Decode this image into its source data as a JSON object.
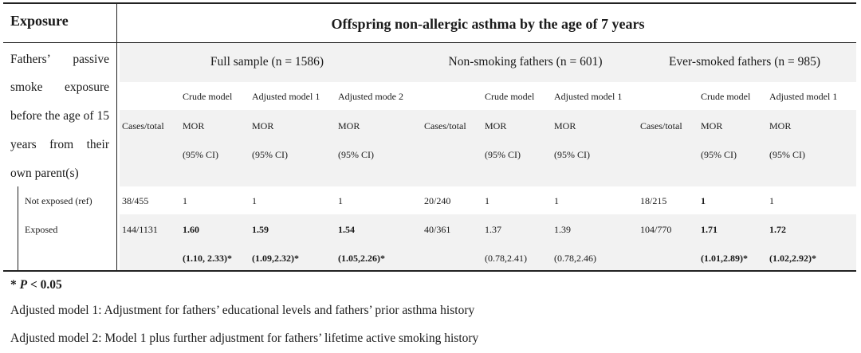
{
  "table": {
    "exposure_header": "Exposure",
    "outcome_header": "Offspring non-allergic asthma by the age of 7 years",
    "exposure_desc": [
      [
        "Fathers’",
        "passive"
      ],
      [
        "smoke",
        "exposure"
      ],
      [
        "before the age of 15"
      ],
      [
        "years",
        "from",
        "their"
      ],
      [
        "own parent(s)"
      ]
    ],
    "groups": [
      {
        "label": "Full sample (n = 1586)",
        "models": [
          "Crude model",
          "Adjusted model 1",
          "Adjusted mode 2"
        ]
      },
      {
        "label": "Non-smoking fathers (n = 601)",
        "models": [
          "Crude model",
          "Adjusted model 1"
        ]
      },
      {
        "label": "Ever-smoked fathers (n = 985)",
        "models": [
          "Crude model",
          "Adjusted model 1"
        ]
      }
    ],
    "cases_label": "Cases/total",
    "mor_label": "MOR",
    "ci_label": "(95% CI)",
    "rows": [
      {
        "label": "Not exposed (ref)",
        "cases": [
          "38/455",
          "20/240",
          "18/215"
        ],
        "mor": [
          {
            "v": "1",
            "bold": false
          },
          {
            "v": "1",
            "bold": false
          },
          {
            "v": "1",
            "bold": false
          },
          {
            "v": "1",
            "bold": false
          },
          {
            "v": "1",
            "bold": false
          },
          {
            "v": "1",
            "bold": true
          },
          {
            "v": "1",
            "bold": false
          }
        ],
        "ci": [
          "",
          "",
          "",
          "",
          "",
          "",
          ""
        ]
      },
      {
        "label": "Exposed",
        "cases": [
          "144/1131",
          "40/361",
          "104/770"
        ],
        "mor": [
          {
            "v": "1.60",
            "bold": true
          },
          {
            "v": "1.59",
            "bold": true
          },
          {
            "v": "1.54",
            "bold": true
          },
          {
            "v": "1.37",
            "bold": false
          },
          {
            "v": "1.39",
            "bold": false
          },
          {
            "v": "1.71",
            "bold": true
          },
          {
            "v": "1.72",
            "bold": true
          }
        ],
        "ci": [
          "(1.10, 2.33)*",
          "(1.09,2.32)*",
          "(1.05,2.26)*",
          "(0.78,2.41)",
          "(0.78,2.46)",
          "(1.01,2.89)*",
          "(1.02,2.92)*"
        ]
      }
    ]
  },
  "footnotes": {
    "sig_star": "* ",
    "sig_p": "P",
    "sig_rest": " < 0.05",
    "model1": "Adjusted model 1: Adjustment for fathers’ educational levels and fathers’ prior asthma history",
    "model2": "Adjusted model 2: Model 1 plus further adjustment for fathers’ lifetime active smoking history"
  }
}
